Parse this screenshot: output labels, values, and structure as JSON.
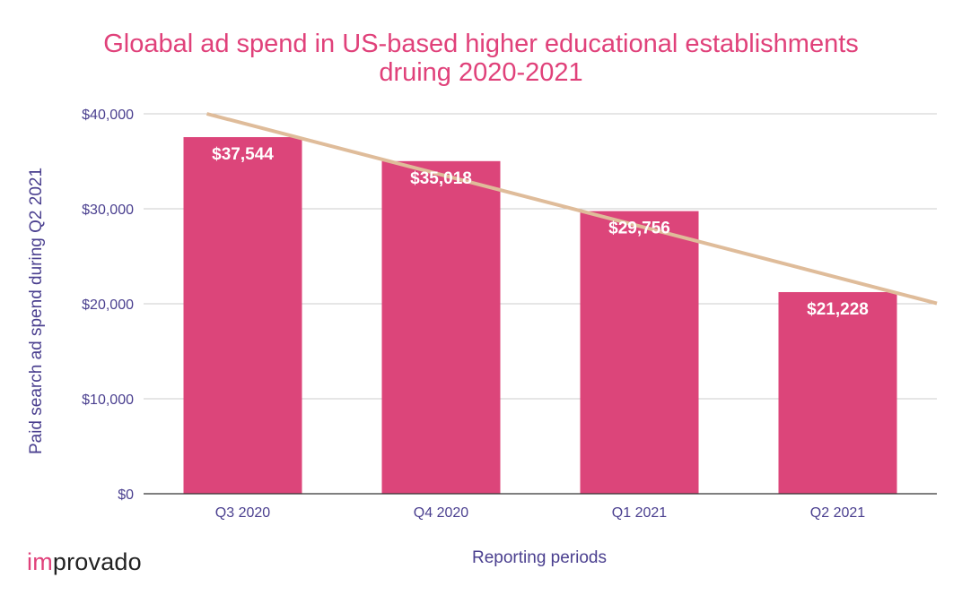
{
  "colors": {
    "title": "#e0417a",
    "bar": "#dc457a",
    "trend": "#dfbc9a",
    "axis_text": "#4a3f8f",
    "grid": "#cccccc",
    "baseline": "#333333"
  },
  "logo": {
    "prefix": "im",
    "suffix": "provado"
  },
  "chart_data": {
    "type": "bar",
    "title": "Gloabal ad spend in US-based higher educational establishments",
    "subtitle": "druing 2020-2021",
    "xlabel": "Reporting periods",
    "ylabel": "Paid search ad spend during Q2 2021",
    "categories": [
      "Q3 2020",
      "Q4 2020",
      "Q1 2021",
      "Q2 2021"
    ],
    "values": [
      37544,
      35018,
      29756,
      21228
    ],
    "data_labels": [
      "$37,544",
      "$35,018",
      "$29,756",
      "$21,228"
    ],
    "ylim": [
      0,
      40000
    ],
    "yticks": [
      0,
      10000,
      20000,
      30000,
      40000
    ],
    "ytick_labels": [
      "$0",
      "$10,000",
      "$20,000",
      "$30,000",
      "$40,000"
    ],
    "grid": true,
    "legend": "none",
    "trendline": {
      "type": "linear"
    }
  }
}
